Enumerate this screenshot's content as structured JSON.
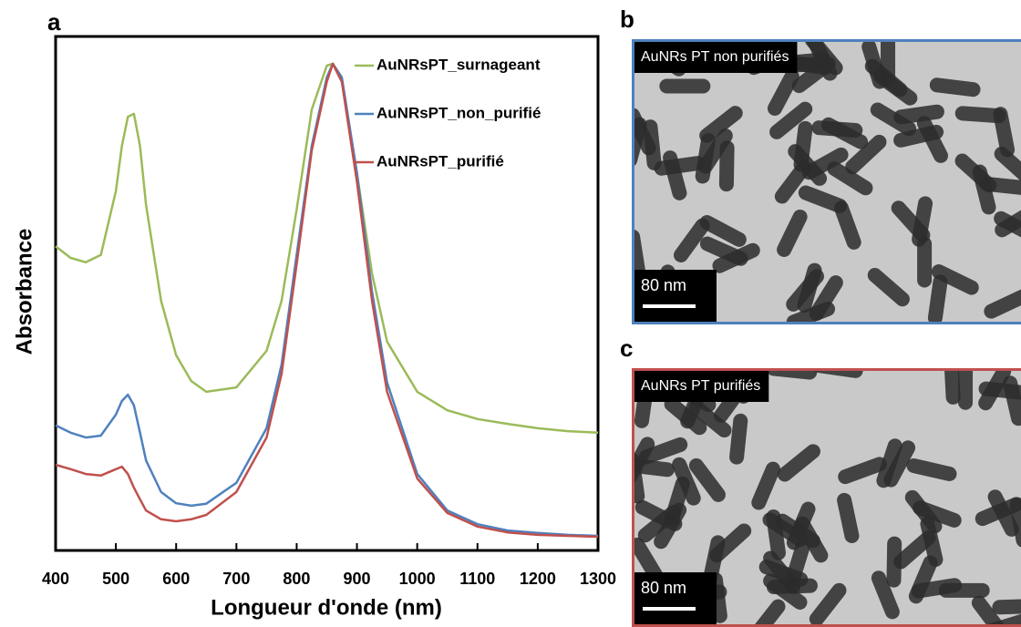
{
  "chart_data": {
    "type": "line",
    "panel_label": "a",
    "xlabel": "Longueur d'onde (nm)",
    "ylabel": "Absorbance",
    "x": [
      400,
      425,
      450,
      475,
      500,
      510,
      520,
      530,
      540,
      550,
      575,
      600,
      625,
      650,
      700,
      750,
      775,
      800,
      825,
      850,
      860,
      875,
      900,
      925,
      950,
      1000,
      1050,
      1100,
      1150,
      1200,
      1250,
      1300
    ],
    "series": [
      {
        "name": "AuNRsPT_surnageant",
        "color": "#9bbb59",
        "values": [
          0.625,
          0.601,
          0.592,
          0.607,
          0.738,
          0.831,
          0.891,
          0.897,
          0.831,
          0.71,
          0.513,
          0.401,
          0.348,
          0.326,
          0.335,
          0.41,
          0.513,
          0.7,
          0.906,
          0.996,
          1.0,
          0.963,
          0.775,
          0.569,
          0.429,
          0.326,
          0.288,
          0.27,
          0.26,
          0.251,
          0.245,
          0.242
        ]
      },
      {
        "name": "AuNRsPT_non_purifié",
        "color": "#4f81bd",
        "values": [
          0.257,
          0.242,
          0.232,
          0.236,
          0.279,
          0.307,
          0.32,
          0.298,
          0.242,
          0.185,
          0.12,
          0.097,
          0.092,
          0.096,
          0.139,
          0.251,
          0.382,
          0.607,
          0.831,
          0.972,
          1.0,
          0.972,
          0.775,
          0.532,
          0.345,
          0.157,
          0.082,
          0.054,
          0.041,
          0.036,
          0.032,
          0.03
        ]
      },
      {
        "name": "AuNRsPT_purifié",
        "color": "#c0504d",
        "values": [
          0.176,
          0.167,
          0.157,
          0.154,
          0.167,
          0.172,
          0.157,
          0.129,
          0.105,
          0.082,
          0.064,
          0.06,
          0.064,
          0.073,
          0.12,
          0.232,
          0.363,
          0.588,
          0.822,
          0.963,
          1.0,
          0.963,
          0.757,
          0.513,
          0.326,
          0.148,
          0.077,
          0.049,
          0.037,
          0.032,
          0.03,
          0.028
        ]
      }
    ],
    "xlim": [
      400,
      1300
    ],
    "xticks": [
      400,
      500,
      600,
      700,
      800,
      900,
      1000,
      1100,
      1200,
      1300
    ],
    "ylim": [
      0,
      1.056
    ],
    "legend": "upper right"
  },
  "images": [
    {
      "panel_label": "b",
      "caption": "AuNRs PT non purifiés",
      "scale_bar": "80 nm",
      "border_color": "#4f81bd"
    },
    {
      "panel_label": "c",
      "caption": "AuNRs PT purifiés",
      "scale_bar": "80 nm",
      "border_color": "#c0504d"
    }
  ]
}
